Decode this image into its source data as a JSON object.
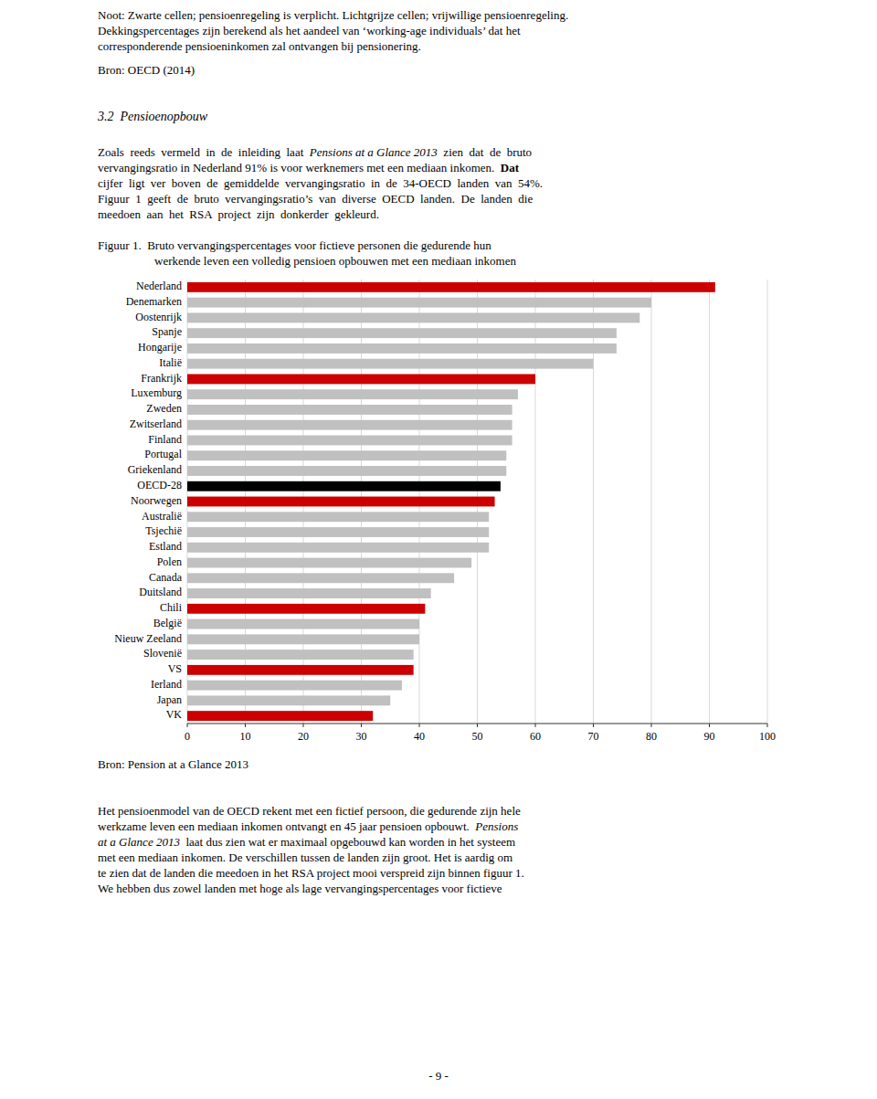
{
  "chart_data": {
    "type": "bar",
    "orientation": "horizontal",
    "title": "Figuur 1.  Bruto vervangingspercentages voor fictieve personen die gedurende hun\nwerkende leven een volledig pensioen opbouwen met een mediaan inkomen",
    "annotations": [
      "Bron: Pension at a Glance 2013"
    ],
    "categories": [
      "Nederland",
      "Denemarken",
      "Oostenrijk",
      "Spanje",
      "Hongarije",
      "Italië",
      "Frankrijk",
      "Luxemburg",
      "Zweden",
      "Zwitserland",
      "Finland",
      "Portugal",
      "Griekenland",
      "OECD-28",
      "Noorwegen",
      "Australië",
      "Tsjechië",
      "Estland",
      "Polen",
      "Canada",
      "Duitsland",
      "Chili",
      "België",
      "Nieuw Zeeland",
      "Slovenië",
      "VS",
      "Ierland",
      "Japan",
      "VK"
    ],
    "values": [
      91,
      80,
      78,
      74,
      74,
      70,
      60,
      57,
      56,
      56,
      56,
      55,
      55,
      54,
      53,
      52,
      52,
      52,
      49,
      46,
      42,
      41,
      40,
      40,
      39,
      39,
      37,
      35,
      32
    ],
    "colors": [
      "#cc0000",
      "#c0c0c0",
      "#c0c0c0",
      "#c0c0c0",
      "#c0c0c0",
      "#c0c0c0",
      "#cc0000",
      "#c0c0c0",
      "#c0c0c0",
      "#c0c0c0",
      "#c0c0c0",
      "#c0c0c0",
      "#c0c0c0",
      "#000000",
      "#cc0000",
      "#c0c0c0",
      "#c0c0c0",
      "#c0c0c0",
      "#c0c0c0",
      "#c0c0c0",
      "#c0c0c0",
      "#cc0000",
      "#c0c0c0",
      "#c0c0c0",
      "#c0c0c0",
      "#cc0000",
      "#c0c0c0",
      "#c0c0c0",
      "#cc0000"
    ],
    "xlim": [
      0,
      100
    ],
    "xticks": [
      0,
      10,
      20,
      30,
      40,
      50,
      60,
      70,
      80,
      90,
      100
    ],
    "grid": true
  },
  "page": {
    "header": [
      "Noot: Zwarte cellen; pensioenregeling is verplicht. Lichtgrijze cellen; vrijwillige pensioenregeling.",
      "Dekkingspercentages zijn berekend als het aandeel van ‘working-age individuals’ dat het",
      "corresponderende pensioeninkomen zal ontvangen bij pensionering.",
      "Bron: OECD (2014)"
    ],
    "section_title": "3.2  Pensioenopbouw",
    "body": [
      [
        {
          "text": "Zoals  reeds  vermeld  in  de  inleiding  laat  "
        },
        {
          "text": "Pensions at a Glance 2013",
          "style": "italic"
        },
        {
          "text": "  zien  dat  de  bruto"
        }
      ],
      [
        {
          "text": "vervangingsratio in Nederland 91% is voor werknemers met een mediaan inkomen.  "
        },
        {
          "text": "Dat",
          "style": "bold"
        }
      ],
      [
        {
          "text": "cijfer  ligt  ver  boven  de  gemiddelde  vervangingsratio  in  de  34-OECD  landen  van  54%."
        }
      ],
      [
        {
          "text": "Figuur  1  geeft  de  bruto  vervangingsratio’s  van  diverse  OECD  landen.  De  landen  die"
        }
      ],
      [
        {
          "text": "meedoen  aan  het  RSA  project  zijn  donkerder  gekleurd."
        }
      ]
    ],
    "footer": [
      [
        {
          "text": "Het pensioenmodel van de OECD rekent met een fictief persoon, die gedurende zijn hele"
        }
      ],
      [
        {
          "text": "werkzame leven een mediaan inkomen ontvangt en 45 jaar pensioen opbouwt.  "
        },
        {
          "text": "Pensions",
          "style": "italic"
        }
      ],
      [
        {
          "text": "at a Glance 2013",
          "style": "italic"
        },
        {
          "text": "  laat dus zien wat er maximaal opgebouwd kan worden in het systeem"
        }
      ],
      [
        {
          "text": "met een mediaan inkomen. De verschillen tussen de landen zijn groot. Het is aardig om"
        }
      ],
      [
        {
          "text": "te zien dat de landen die meedoen in het RSA project mooi verspreid zijn binnen figuur 1."
        }
      ],
      [
        {
          "text": "We hebben dus zowel landen met hoge als lage vervangingspercentages voor fictieve"
        }
      ]
    ],
    "page_number": "- 9 -"
  }
}
